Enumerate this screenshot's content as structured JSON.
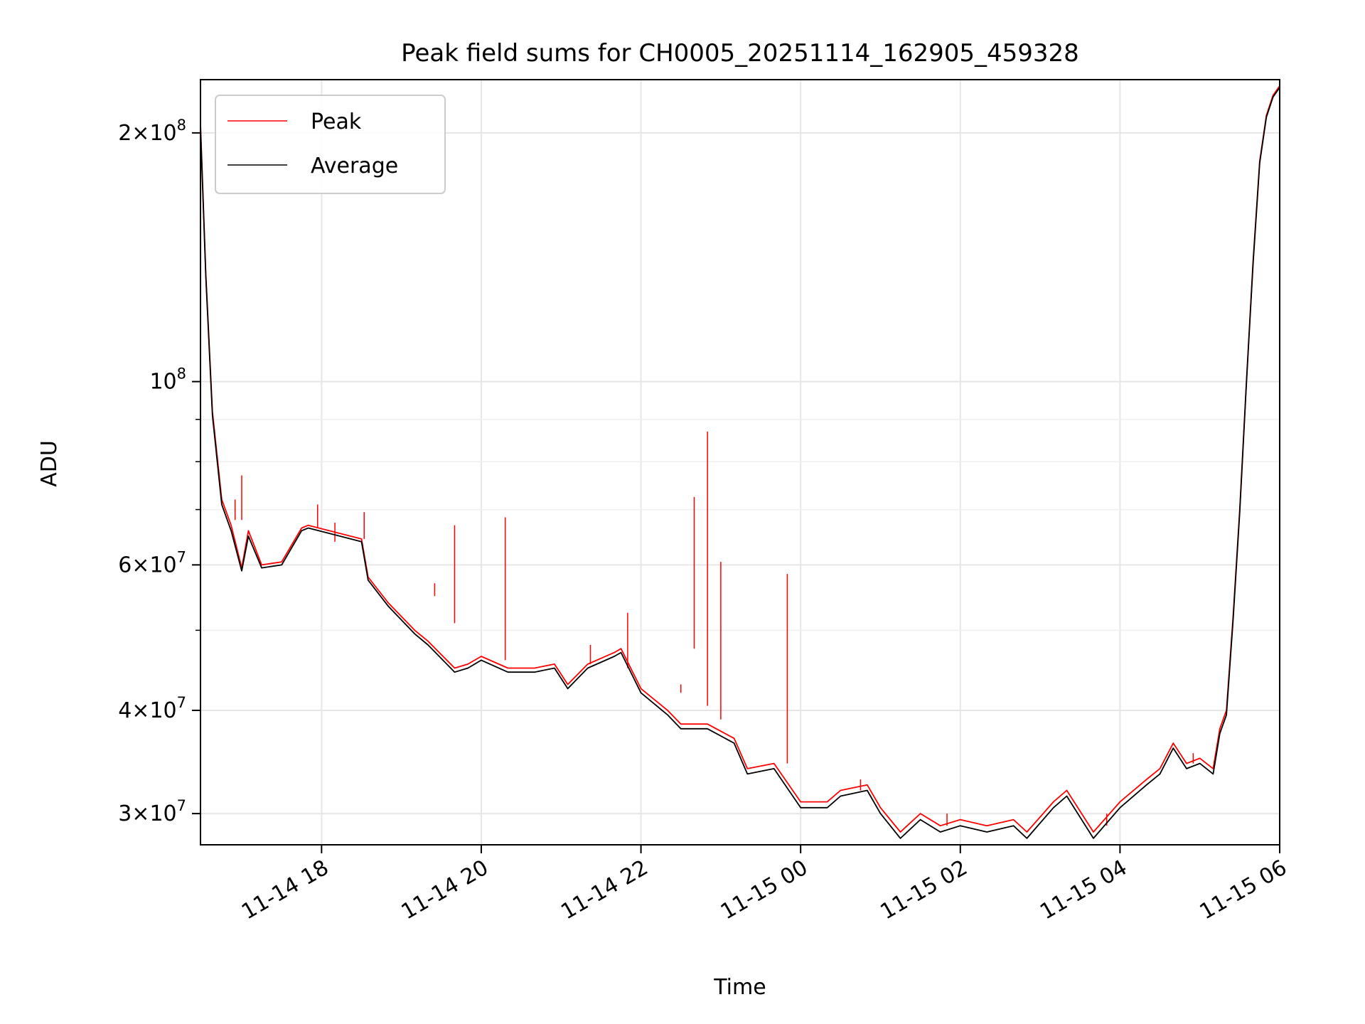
{
  "chart_data": {
    "type": "line",
    "title": "Peak field sums for CH0005_20251114_162905_459328",
    "xlabel": "Time",
    "ylabel": "ADU",
    "yscale": "log",
    "grid": true,
    "legend_position": "upper-left",
    "xlim": [
      "2025-11-14T16:29",
      "2025-11-15T06:00"
    ],
    "ylim": [
      27500000,
      232000000
    ],
    "x_ticks": [
      {
        "value": "2025-11-14T18:00",
        "label": "11-14 18"
      },
      {
        "value": "2025-11-14T20:00",
        "label": "11-14 20"
      },
      {
        "value": "2025-11-14T22:00",
        "label": "11-14 22"
      },
      {
        "value": "2025-11-15T00:00",
        "label": "11-15 00"
      },
      {
        "value": "2025-11-15T02:00",
        "label": "11-15 02"
      },
      {
        "value": "2025-11-15T04:00",
        "label": "11-15 04"
      },
      {
        "value": "2025-11-15T06:00",
        "label": "11-15 06"
      }
    ],
    "y_major_ticks": [
      {
        "value": 30000000,
        "mantissa": "3",
        "exponent": "7"
      },
      {
        "value": 40000000,
        "mantissa": "4",
        "exponent": "7"
      },
      {
        "value": 60000000,
        "mantissa": "6",
        "exponent": "7"
      },
      {
        "value": 100000000,
        "mantissa": "",
        "exponent": "8"
      },
      {
        "value": 200000000,
        "mantissa": "2",
        "exponent": "8"
      }
    ],
    "y_minor_ticks": [
      50000000,
      70000000,
      80000000,
      90000000
    ],
    "series": [
      {
        "name": "Peak",
        "color": "#ff0000",
        "x": [
          "2025-11-14T16:29",
          "2025-11-14T16:33",
          "2025-11-14T16:38",
          "2025-11-14T16:45",
          "2025-11-14T16:52",
          "2025-11-14T17:00",
          "2025-11-14T17:05",
          "2025-11-14T17:15",
          "2025-11-14T17:30",
          "2025-11-14T17:45",
          "2025-11-14T17:50",
          "2025-11-14T18:30",
          "2025-11-14T18:35",
          "2025-11-14T18:50",
          "2025-11-14T19:10",
          "2025-11-14T19:20",
          "2025-11-14T19:40",
          "2025-11-14T19:50",
          "2025-11-14T20:00",
          "2025-11-14T20:20",
          "2025-11-14T20:40",
          "2025-11-14T20:55",
          "2025-11-14T21:05",
          "2025-11-14T21:20",
          "2025-11-14T21:40",
          "2025-11-14T21:45",
          "2025-11-14T22:00",
          "2025-11-14T22:20",
          "2025-11-14T22:30",
          "2025-11-14T22:50",
          "2025-11-14T23:10",
          "2025-11-14T23:20",
          "2025-11-14T23:40",
          "2025-11-15T00:00",
          "2025-11-15T00:20",
          "2025-11-15T00:30",
          "2025-11-15T00:50",
          "2025-11-15T01:00",
          "2025-11-15T01:15",
          "2025-11-15T01:30",
          "2025-11-15T01:45",
          "2025-11-15T02:00",
          "2025-11-15T02:20",
          "2025-11-15T02:40",
          "2025-11-15T02:50",
          "2025-11-15T03:10",
          "2025-11-15T03:20",
          "2025-11-15T03:40",
          "2025-11-15T04:00",
          "2025-11-15T04:20",
          "2025-11-15T04:30",
          "2025-11-15T04:40",
          "2025-11-15T04:50",
          "2025-11-15T05:00",
          "2025-11-15T05:10",
          "2025-11-15T05:15",
          "2025-11-15T05:20",
          "2025-11-15T05:25",
          "2025-11-15T05:30",
          "2025-11-15T05:35",
          "2025-11-15T05:40",
          "2025-11-15T05:45",
          "2025-11-15T05:50",
          "2025-11-15T05:55",
          "2025-11-15T06:00"
        ],
        "y": [
          205000000,
          135000000,
          92000000,
          72000000,
          67000000,
          59500000,
          66000000,
          60000000,
          60500000,
          66500000,
          67000000,
          64500000,
          58000000,
          54000000,
          50000000,
          48500000,
          45000000,
          45500000,
          46500000,
          45000000,
          45000000,
          45500000,
          43000000,
          45500000,
          47000000,
          47500000,
          42500000,
          40000000,
          38500000,
          38500000,
          37000000,
          34000000,
          34500000,
          31000000,
          31000000,
          32000000,
          32500000,
          30500000,
          28500000,
          30000000,
          29000000,
          29500000,
          29000000,
          29500000,
          28500000,
          31000000,
          32000000,
          28500000,
          31000000,
          33000000,
          34000000,
          36500000,
          34500000,
          35000000,
          34000000,
          38000000,
          40000000,
          52000000,
          70000000,
          100000000,
          140000000,
          185000000,
          210000000,
          222000000,
          228000000
        ]
      },
      {
        "name": "Average",
        "color": "#000000",
        "x": [
          "2025-11-14T16:29",
          "2025-11-14T16:33",
          "2025-11-14T16:38",
          "2025-11-14T16:45",
          "2025-11-14T16:52",
          "2025-11-14T17:00",
          "2025-11-14T17:05",
          "2025-11-14T17:15",
          "2025-11-14T17:30",
          "2025-11-14T17:45",
          "2025-11-14T17:50",
          "2025-11-14T18:30",
          "2025-11-14T18:35",
          "2025-11-14T18:50",
          "2025-11-14T19:10",
          "2025-11-14T19:20",
          "2025-11-14T19:40",
          "2025-11-14T19:50",
          "2025-11-14T20:00",
          "2025-11-14T20:20",
          "2025-11-14T20:40",
          "2025-11-14T20:55",
          "2025-11-14T21:05",
          "2025-11-14T21:20",
          "2025-11-14T21:40",
          "2025-11-14T21:45",
          "2025-11-14T22:00",
          "2025-11-14T22:20",
          "2025-11-14T22:30",
          "2025-11-14T22:50",
          "2025-11-14T23:10",
          "2025-11-14T23:20",
          "2025-11-14T23:40",
          "2025-11-15T00:00",
          "2025-11-15T00:20",
          "2025-11-15T00:30",
          "2025-11-15T00:50",
          "2025-11-15T01:00",
          "2025-11-15T01:15",
          "2025-11-15T01:30",
          "2025-11-15T01:45",
          "2025-11-15T02:00",
          "2025-11-15T02:20",
          "2025-11-15T02:40",
          "2025-11-15T02:50",
          "2025-11-15T03:10",
          "2025-11-15T03:20",
          "2025-11-15T03:40",
          "2025-11-15T04:00",
          "2025-11-15T04:20",
          "2025-11-15T04:30",
          "2025-11-15T04:40",
          "2025-11-15T04:50",
          "2025-11-15T05:00",
          "2025-11-15T05:10",
          "2025-11-15T05:15",
          "2025-11-15T05:20",
          "2025-11-15T05:25",
          "2025-11-15T05:30",
          "2025-11-15T05:35",
          "2025-11-15T05:40",
          "2025-11-15T05:45",
          "2025-11-15T05:50",
          "2025-11-15T05:55",
          "2025-11-15T06:00"
        ],
        "y": [
          203000000,
          134000000,
          91000000,
          71000000,
          66000000,
          59000000,
          65000000,
          59500000,
          60000000,
          66000000,
          66500000,
          64000000,
          57500000,
          53500000,
          49500000,
          48000000,
          44500000,
          45000000,
          46000000,
          44500000,
          44500000,
          45000000,
          42500000,
          45000000,
          46500000,
          47000000,
          42000000,
          39500000,
          38000000,
          38000000,
          36500000,
          33500000,
          34000000,
          30500000,
          30500000,
          31500000,
          32000000,
          30000000,
          28000000,
          29500000,
          28500000,
          29000000,
          28500000,
          29000000,
          28000000,
          30500000,
          31500000,
          28000000,
          30500000,
          32500000,
          33500000,
          36000000,
          34000000,
          34500000,
          33500000,
          37500000,
          39500000,
          51500000,
          69500000,
          99500000,
          139000000,
          184000000,
          209000000,
          221000000,
          227000000
        ]
      }
    ],
    "spikes": [
      {
        "x": "2025-11-14T16:55",
        "base": 68000000,
        "y": 72000000
      },
      {
        "x": "2025-11-14T17:00",
        "base": 68000000,
        "y": 77000000
      },
      {
        "x": "2025-11-14T17:57",
        "base": 66500000,
        "y": 71000000
      },
      {
        "x": "2025-11-14T18:10",
        "base": 64000000,
        "y": 67500000
      },
      {
        "x": "2025-11-14T18:32",
        "base": 64500000,
        "y": 69500000
      },
      {
        "x": "2025-11-14T19:25",
        "base": 55000000,
        "y": 57000000
      },
      {
        "x": "2025-11-14T19:40",
        "base": 51000000,
        "y": 67000000
      },
      {
        "x": "2025-11-14T20:18",
        "base": 46000000,
        "y": 68500000
      },
      {
        "x": "2025-11-14T21:22",
        "base": 45500000,
        "y": 48000000
      },
      {
        "x": "2025-11-14T21:50",
        "base": 45000000,
        "y": 52500000
      },
      {
        "x": "2025-11-14T22:40",
        "base": 47500000,
        "y": 72500000
      },
      {
        "x": "2025-11-14T22:30",
        "base": 42000000,
        "y": 43000000
      },
      {
        "x": "2025-11-14T22:50",
        "base": 40500000,
        "y": 87000000
      },
      {
        "x": "2025-11-14T23:00",
        "base": 39000000,
        "y": 60500000
      },
      {
        "x": "2025-11-14T23:50",
        "base": 34500000,
        "y": 58500000
      },
      {
        "x": "2025-11-15T00:45",
        "base": 32000000,
        "y": 33000000
      },
      {
        "x": "2025-11-15T01:50",
        "base": 29000000,
        "y": 30000000
      },
      {
        "x": "2025-11-15T03:50",
        "base": 29000000,
        "y": 30000000
      },
      {
        "x": "2025-11-15T04:55",
        "base": 34500000,
        "y": 35500000
      }
    ]
  }
}
